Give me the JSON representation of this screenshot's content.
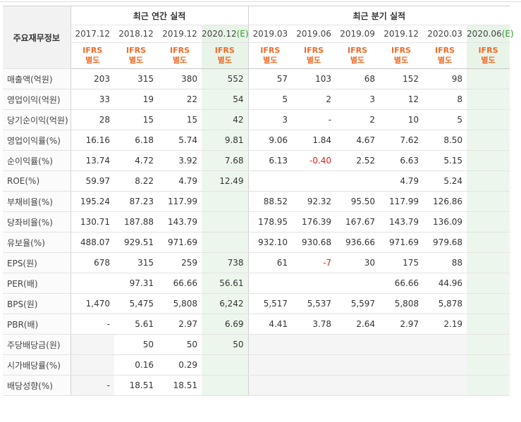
{
  "headers": {
    "row_label": "주요재무정보",
    "annual_group": "최근 연간 실적",
    "quarter_group": "최근 분기 실적",
    "annual_periods": [
      "2017.12",
      "2018.12",
      "2019.12",
      "2020.12"
    ],
    "annual_est_mark": "(E)",
    "quarter_periods": [
      "2019.03",
      "2019.06",
      "2019.09",
      "2019.12",
      "2020.03",
      "2020.06"
    ],
    "quarter_est_mark": "(E)",
    "ifrs_line1": "IFRS",
    "ifrs_line2": "별도"
  },
  "rows": [
    {
      "label": "매출액(억원)",
      "values": [
        "203",
        "315",
        "380",
        "552",
        "57",
        "103",
        "68",
        "152",
        "98",
        ""
      ]
    },
    {
      "label": "영업이익(억원)",
      "values": [
        "33",
        "19",
        "22",
        "54",
        "5",
        "2",
        "3",
        "12",
        "8",
        ""
      ]
    },
    {
      "label": "당기순이익(억원)",
      "values": [
        "28",
        "15",
        "15",
        "42",
        "3",
        "-",
        "2",
        "10",
        "5",
        ""
      ]
    },
    {
      "label": "영업이익률(%)",
      "values": [
        "16.16",
        "6.18",
        "5.74",
        "9.81",
        "9.06",
        "1.84",
        "4.67",
        "7.62",
        "8.50",
        ""
      ]
    },
    {
      "label": "순이익률(%)",
      "values": [
        "13.74",
        "4.72",
        "3.92",
        "7.68",
        "6.13",
        "-0.40",
        "2.52",
        "6.63",
        "5.15",
        ""
      ]
    },
    {
      "label": "ROE(%)",
      "values": [
        "59.97",
        "8.22",
        "4.79",
        "12.49",
        "",
        "",
        "",
        "4.79",
        "5.24",
        ""
      ]
    },
    {
      "label": "부채비율(%)",
      "values": [
        "195.24",
        "87.23",
        "117.99",
        "",
        "88.52",
        "92.32",
        "95.50",
        "117.99",
        "126.86",
        ""
      ]
    },
    {
      "label": "당좌비율(%)",
      "values": [
        "130.71",
        "187.88",
        "143.79",
        "",
        "178.95",
        "176.39",
        "167.67",
        "143.79",
        "136.09",
        ""
      ]
    },
    {
      "label": "유보율(%)",
      "values": [
        "488.07",
        "929.51",
        "971.69",
        "",
        "932.10",
        "930.68",
        "936.66",
        "971.69",
        "979.68",
        ""
      ]
    },
    {
      "label": "EPS(원)",
      "values": [
        "678",
        "315",
        "259",
        "738",
        "61",
        "-7",
        "30",
        "175",
        "88",
        ""
      ]
    },
    {
      "label": "PER(배)",
      "values": [
        "",
        "97.31",
        "66.66",
        "56.61",
        "",
        "",
        "",
        "66.66",
        "44.96",
        ""
      ]
    },
    {
      "label": "BPS(원)",
      "values": [
        "1,470",
        "5,475",
        "5,808",
        "6,242",
        "5,517",
        "5,537",
        "5,597",
        "5,808",
        "5,878",
        ""
      ]
    },
    {
      "label": "PBR(배)",
      "values": [
        "-",
        "5.61",
        "2.97",
        "6.69",
        "4.41",
        "3.78",
        "2.64",
        "2.97",
        "2.19",
        ""
      ]
    },
    {
      "label": "주당배당금(원)",
      "values": [
        "",
        "50",
        "50",
        "50",
        "",
        "",
        "",
        "",
        "",
        ""
      ]
    },
    {
      "label": "시가배당률(%)",
      "values": [
        "",
        "0.16",
        "0.29",
        "",
        "",
        "",
        "",
        "",
        "",
        ""
      ]
    },
    {
      "label": "배당성향(%)",
      "values": [
        "-",
        "18.51",
        "18.51",
        "",
        "",
        "",
        "",
        "",
        "",
        ""
      ]
    }
  ],
  "negative_color": "#e02020",
  "ifrs_color": "#f06a26",
  "estimate_color": "#2e9a2e"
}
